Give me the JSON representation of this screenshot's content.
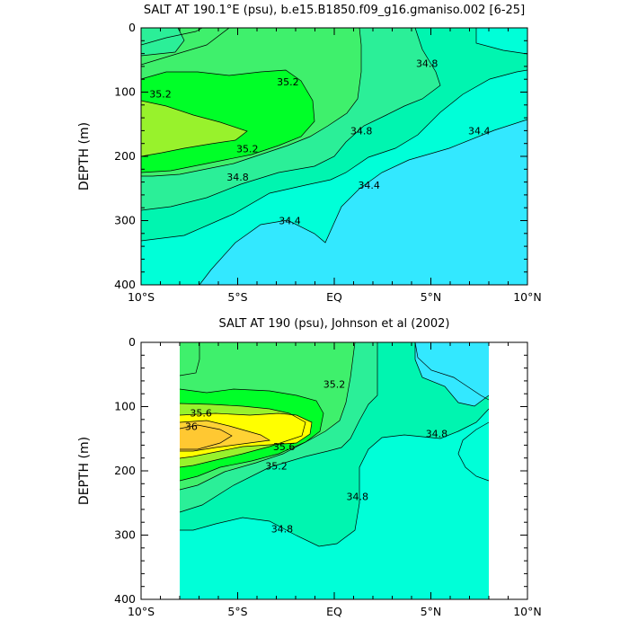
{
  "chart_data": [
    {
      "type": "contour",
      "title": "SALT AT 190.1°E (psu), b.e15.B1850.f09_g16.gmaniso.002 [6-25]",
      "ylabel": "DEPTH (m)",
      "xticks": [
        "10°S",
        "5°S",
        "EQ",
        "5°N",
        "10°N"
      ],
      "xlim": [
        -10,
        10
      ],
      "yticks": [
        "0",
        "100",
        "200",
        "300",
        "400"
      ],
      "ylim": [
        400,
        0
      ],
      "contour_labels": [
        {
          "text": "35.2",
          "lon": -9.0,
          "depth": 103
        },
        {
          "text": "35.2",
          "lon": -2.4,
          "depth": 84
        },
        {
          "text": "35.2",
          "lon": -4.5,
          "depth": 188
        },
        {
          "text": "34.8",
          "lon": -5.0,
          "depth": 232
        },
        {
          "text": "34.8",
          "lon": 1.4,
          "depth": 160
        },
        {
          "text": "34.8",
          "lon": 4.8,
          "depth": 55
        },
        {
          "text": "34.4",
          "lon": -2.3,
          "depth": 300
        },
        {
          "text": "34.4",
          "lon": 1.8,
          "depth": 245
        },
        {
          "text": "34.4",
          "lon": 7.5,
          "depth": 160
        }
      ]
    },
    {
      "type": "contour",
      "title": "SALT AT 190 (psu), Johnson et al (2002)",
      "ylabel": "DEPTH (m)",
      "xticks": [
        "10°S",
        "5°S",
        "EQ",
        "5°N",
        "10°N"
      ],
      "xlim": [
        -10,
        10
      ],
      "yticks": [
        "0",
        "100",
        "200",
        "300",
        "400"
      ],
      "ylim": [
        400,
        0
      ],
      "data_range_lon": [
        -8,
        8
      ],
      "contour_labels": [
        {
          "text": "35.6",
          "lon": -6.9,
          "depth": 110
        },
        {
          "text": "36",
          "lon": -7.4,
          "depth": 131
        },
        {
          "text": "35.6",
          "lon": -2.6,
          "depth": 162
        },
        {
          "text": "35.2",
          "lon": -3.0,
          "depth": 192
        },
        {
          "text": "35.2",
          "lon": 0.0,
          "depth": 65
        },
        {
          "text": "34.8",
          "lon": -2.7,
          "depth": 290
        },
        {
          "text": "34.8",
          "lon": 1.2,
          "depth": 240
        },
        {
          "text": "34.8",
          "lon": 5.3,
          "depth": 142
        }
      ]
    }
  ]
}
